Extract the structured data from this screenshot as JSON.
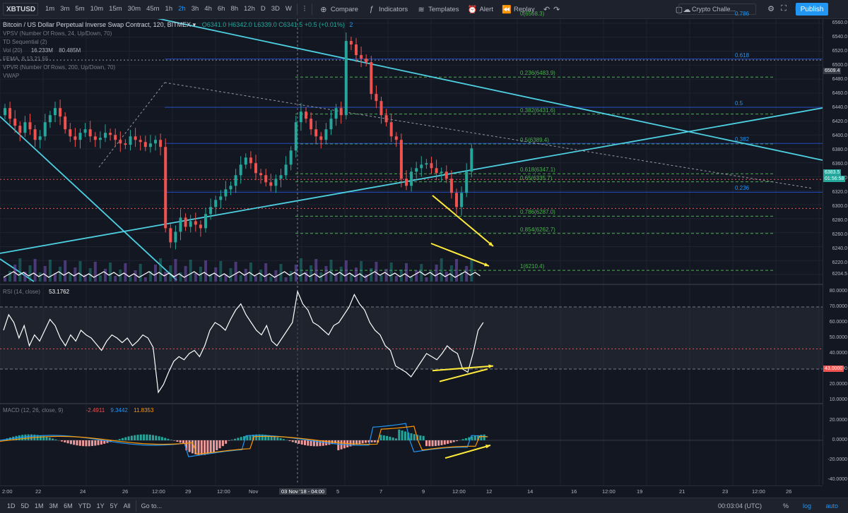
{
  "toolbar": {
    "symbol": "XBTUSD",
    "timeframes": [
      "1m",
      "3m",
      "5m",
      "10m",
      "15m",
      "30m",
      "45m",
      "1h",
      "2h",
      "3h",
      "4h",
      "6h",
      "8h",
      "12h",
      "D",
      "3D",
      "W"
    ],
    "active_timeframe": "2h",
    "compare": "Compare",
    "indicators": "Indicators",
    "templates": "Templates",
    "alert": "Alert",
    "replay": "Replay",
    "challenge": "Crypto Challe...",
    "publish": "Publish"
  },
  "legend": {
    "title": "Bitcoin / US Dollar Perpetual Inverse Swap Contract, 120, BITMEX",
    "ohlc": "O6341.0  H6342.0  L6339.0  C6341.5  +0.5 (+0.01%)",
    "badge": "2",
    "vpsv": "VPSV (Number Of Rows, 24, Up/Down, 70)",
    "td": "TD Sequential (2)",
    "vol": "Vol (20)",
    "vol_v1": "16.233M",
    "vol_v2": "80.485M",
    "fema": "FEMA, 8,13,21,55",
    "vpvr": "VPVR (Number Of Rows, 200, Up/Down, 70)",
    "vwap": "VWAP"
  },
  "fib_green": [
    {
      "label": "0(6568.3)",
      "price": 6568.3
    },
    {
      "label": "0.236(6483.9)",
      "price": 6483.9
    },
    {
      "label": "0.382(6431.6)",
      "price": 6431.6
    },
    {
      "label": "0.5(6389.4)",
      "price": 6389.4
    },
    {
      "label": "0.618(6347.1)",
      "price": 6347.1
    },
    {
      "label": "0.65(6335.7)",
      "price": 6335.7
    },
    {
      "label": "0.786(6287.0)",
      "price": 6287.0
    },
    {
      "label": "0.854(6262.7)",
      "price": 6262.7
    },
    {
      "label": "1(6210.4)",
      "price": 6210.4
    }
  ],
  "fib_blue": [
    {
      "label": "0.786",
      "price": 6568.3
    },
    {
      "label": "0.618",
      "price": 6509.4
    },
    {
      "label": "0.5",
      "price": 6441
    },
    {
      "label": "0.382",
      "price": 6390
    },
    {
      "label": "0.236",
      "price": 6321
    }
  ],
  "price_axis": [
    "6560.0",
    "6540.0",
    "6520.0",
    "6500.0",
    "6480.0",
    "6460.0",
    "6440.0",
    "6420.0",
    "6400.0",
    "6380.0",
    "6360.0",
    "6340.0",
    "6320.0",
    "6300.0",
    "6280.0",
    "6260.0",
    "6240.0",
    "6220.0",
    "6204.5"
  ],
  "price_badges": {
    "last": "6383.5",
    "countdown": "01:56:58",
    "crosshair": "6509.4"
  },
  "rsi": {
    "legend": "RSI (14, close)",
    "value": "53.1762",
    "axis": [
      "80.0000",
      "70.0000",
      "60.0000",
      "50.0000",
      "40.0000",
      "30.0000",
      "20.0000",
      "10.0000"
    ],
    "badge": "43.0000"
  },
  "macd": {
    "legend": "MACD (12, 26, close, 9)",
    "v1": "-2.4911",
    "v2": "9.3442",
    "v3": "11.8353",
    "axis": [
      "20.0000",
      "0.0000",
      "-20.0000",
      "-40.0000"
    ]
  },
  "time_axis": [
    {
      "label": "2:00",
      "x": 3
    },
    {
      "label": "22",
      "x": 50
    },
    {
      "label": "24",
      "x": 113
    },
    {
      "label": "26",
      "x": 173
    },
    {
      "label": "12:00",
      "x": 215
    },
    {
      "label": "29",
      "x": 262
    },
    {
      "label": "12:00",
      "x": 307
    },
    {
      "label": "Nov",
      "x": 352
    },
    {
      "label": "03 Nov '18 - 04:00",
      "x": 395
    },
    {
      "label": "5",
      "x": 476
    },
    {
      "label": "7",
      "x": 537
    },
    {
      "label": "9",
      "x": 597
    },
    {
      "label": "12:00",
      "x": 640
    },
    {
      "label": "12",
      "x": 688
    },
    {
      "label": "14",
      "x": 746
    },
    {
      "label": "16",
      "x": 808
    },
    {
      "label": "12:00",
      "x": 852
    },
    {
      "label": "19",
      "x": 901
    },
    {
      "label": "21",
      "x": 961
    },
    {
      "label": "23",
      "x": 1022
    },
    {
      "label": "12:00",
      "x": 1064
    },
    {
      "label": "26",
      "x": 1112
    }
  ],
  "bottom": {
    "ranges": [
      "1D",
      "5D",
      "1M",
      "3M",
      "6M",
      "YTD",
      "1Y",
      "5Y",
      "All"
    ],
    "goto": "Go to...",
    "clock": "00:03:04 (UTC)",
    "pct": "%",
    "log": "log",
    "auto": "auto"
  },
  "colors": {
    "bg": "#131722",
    "up": "#26a69a",
    "down": "#ef5350",
    "cyan": "#4dd0e1",
    "fib_green": "#4caf50",
    "fib_blue": "#2196f3",
    "arrow": "#ffeb3b",
    "accent": "#2196f3"
  }
}
